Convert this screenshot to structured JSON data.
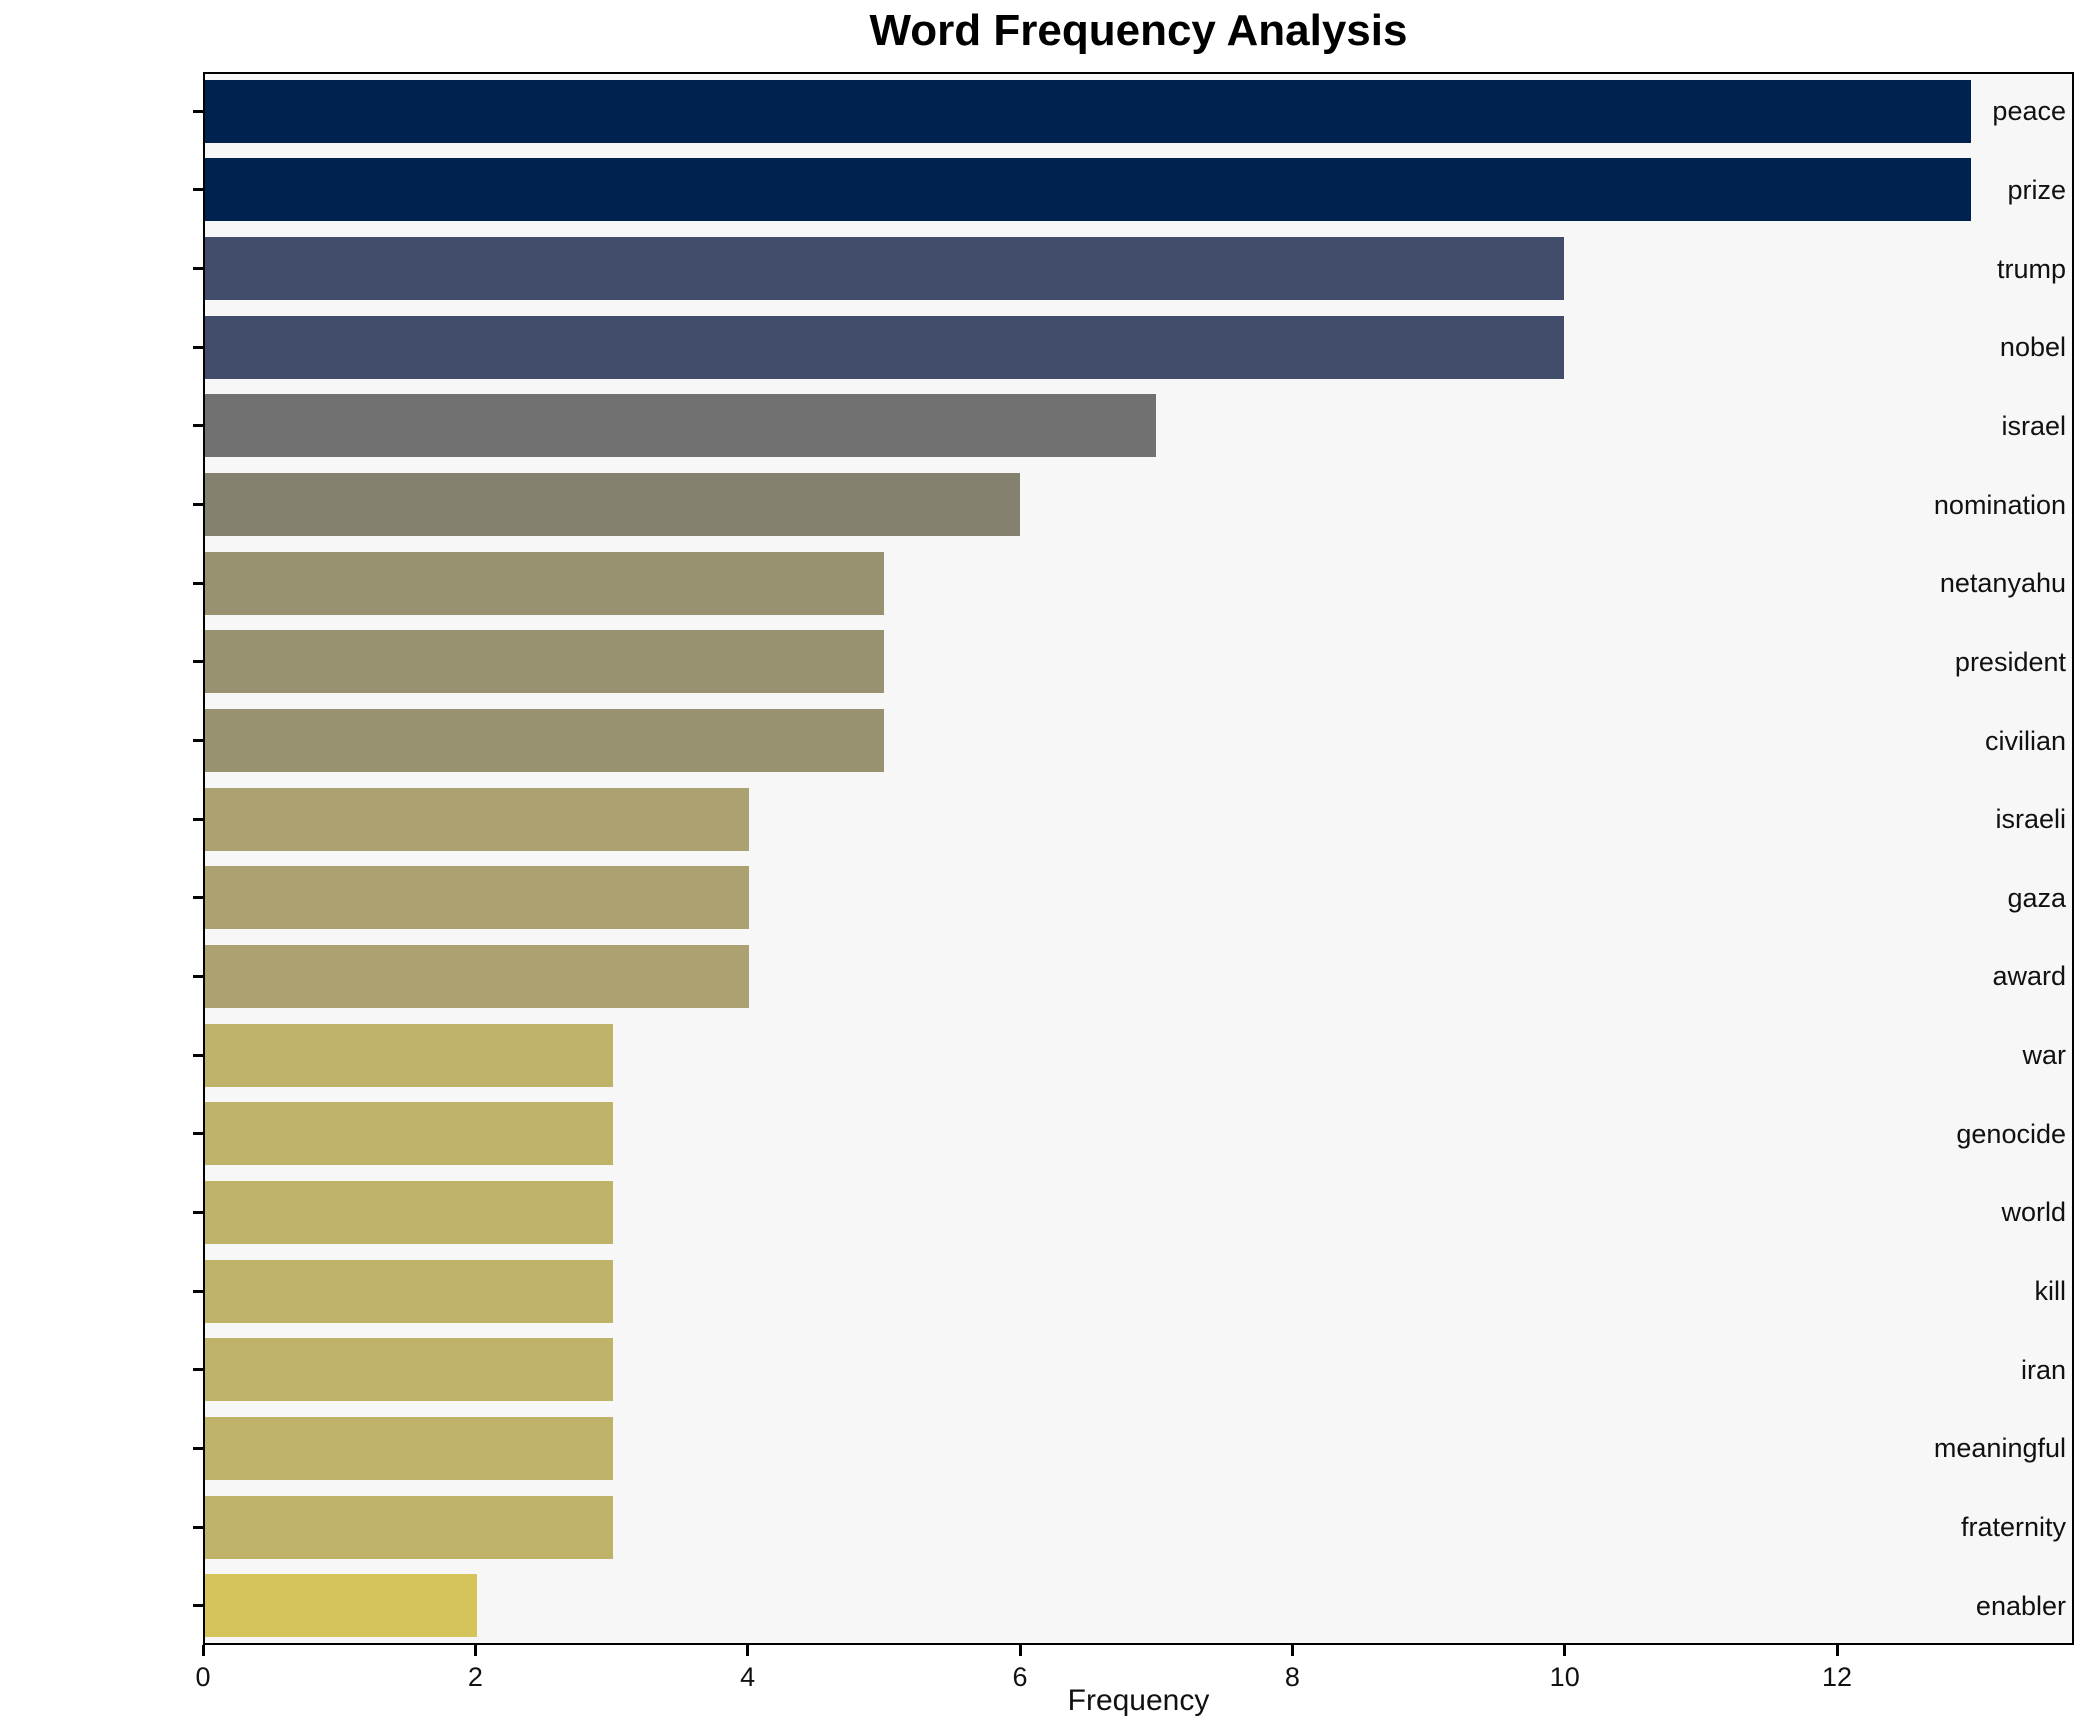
{
  "chart_data": {
    "type": "bar",
    "orientation": "horizontal",
    "title": "Word Frequency Analysis",
    "xlabel": "Frequency",
    "ylabel": "",
    "categories": [
      "peace",
      "prize",
      "trump",
      "nobel",
      "israel",
      "nomination",
      "netanyahu",
      "president",
      "civilian",
      "israeli",
      "gaza",
      "award",
      "war",
      "genocide",
      "world",
      "kill",
      "iran",
      "meaningful",
      "fraternity",
      "enabler"
    ],
    "values": [
      13,
      13,
      10,
      10,
      7,
      6,
      5,
      5,
      5,
      4,
      4,
      4,
      3,
      3,
      3,
      3,
      3,
      3,
      3,
      2
    ],
    "bar_colors": [
      "#00224e",
      "#00224e",
      "#414d6b",
      "#414d6b",
      "#717171",
      "#84816f",
      "#989270",
      "#989270",
      "#989270",
      "#aba171",
      "#aba171",
      "#aba171",
      "#bfb269",
      "#bfb269",
      "#bfb269",
      "#bfb269",
      "#bfb269",
      "#bfb269",
      "#bfb269",
      "#d5c35c"
    ],
    "xticks": [
      0,
      2,
      4,
      6,
      8,
      10,
      12
    ],
    "xlim": [
      0,
      13.74
    ],
    "grid": false,
    "legend": "none",
    "plot_background": "#f7f7f7",
    "figure_background": "#ffffff",
    "bar_height_frac": 0.8
  }
}
